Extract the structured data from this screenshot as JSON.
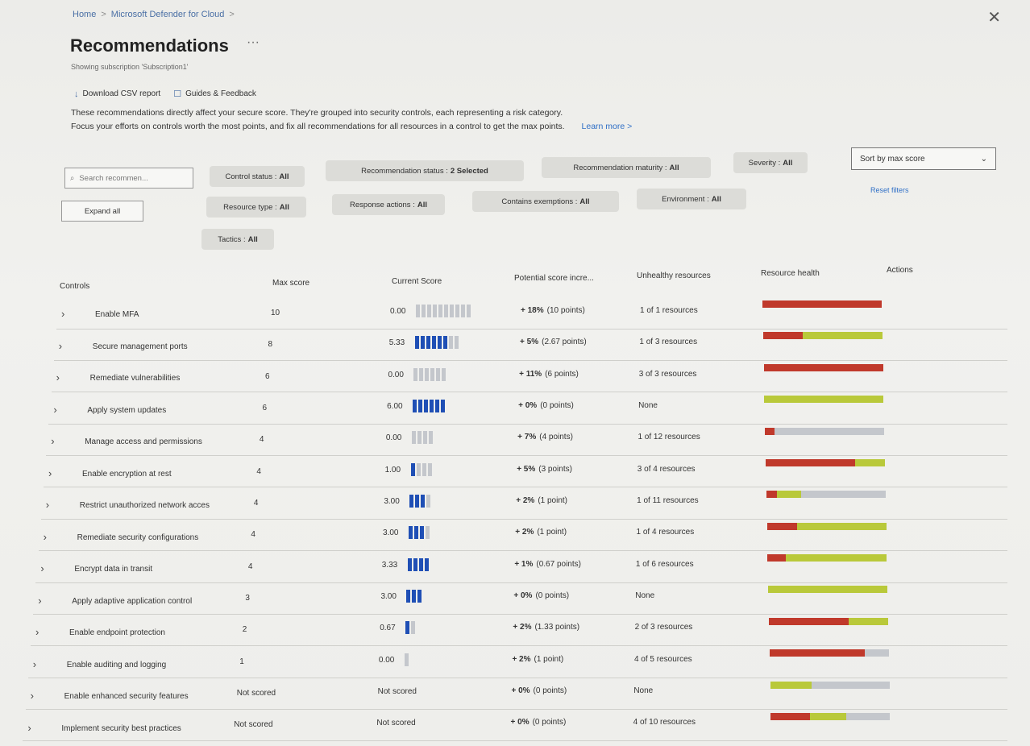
{
  "breadcrumb": [
    "Home",
    "Microsoft Defender for Cloud"
  ],
  "page": {
    "title": "Recommendations",
    "subtitle": "Showing subscription 'Subscription1'"
  },
  "toolbar": {
    "download": "Download CSV report",
    "feedback": "Guides & Feedback"
  },
  "description": {
    "line1": "These recommendations directly affect your secure score. They're grouped into security controls, each representing a risk category.",
    "line2": "Focus your efforts on controls worth the most points, and fix all recommendations for all resources in a control to get the max points.",
    "learn_more": "Learn more >"
  },
  "filters": {
    "search_placeholder": "Search recommen...",
    "expand_all": "Expand all",
    "sort": "Sort by max score",
    "reset": "Reset filters",
    "pills": [
      {
        "label": "Control status :",
        "value": "All"
      },
      {
        "label": "Recommendation status :",
        "value": "2 Selected"
      },
      {
        "label": "Recommendation maturity :",
        "value": "All"
      },
      {
        "label": "Severity :",
        "value": "All"
      },
      {
        "label": "Resource type :",
        "value": "All"
      },
      {
        "label": "Response actions :",
        "value": "All"
      },
      {
        "label": "Contains exemptions :",
        "value": "All"
      },
      {
        "label": "Environment :",
        "value": "All"
      },
      {
        "label": "Tactics :",
        "value": "All"
      }
    ]
  },
  "table": {
    "headers": {
      "controls": "Controls",
      "max": "Max score",
      "current": "Current Score",
      "potential": "Potential score incre...",
      "unhealthy": "Unhealthy resources",
      "health": "Resource health",
      "actions": "Actions"
    },
    "rows": [
      {
        "name": "Enable MFA",
        "max": "10",
        "current": "0.00",
        "on": 0,
        "off": 10,
        "pct": "+ 18%",
        "pts": "(10 points)",
        "unhealthy": "1 of 1 resources",
        "red": 1.0,
        "yellow": 0.0
      },
      {
        "name": "Secure management ports",
        "max": "8",
        "current": "5.33",
        "on": 6,
        "off": 2,
        "pct": "+ 5%",
        "pts": "(2.67 points)",
        "unhealthy": "1 of 3 resources",
        "red": 0.33,
        "yellow": 0.67
      },
      {
        "name": "Remediate vulnerabilities",
        "max": "6",
        "current": "0.00",
        "on": 0,
        "off": 6,
        "pct": "+ 11%",
        "pts": "(6 points)",
        "unhealthy": "3 of 3 resources",
        "red": 1.0,
        "yellow": 0.0
      },
      {
        "name": "Apply system updates",
        "max": "6",
        "current": "6.00",
        "on": 6,
        "off": 0,
        "pct": "+ 0%",
        "pts": "(0 points)",
        "unhealthy": "None",
        "red": 0.0,
        "yellow": 1.0
      },
      {
        "name": "Manage access and permissions",
        "max": "4",
        "current": "0.00",
        "on": 0,
        "off": 4,
        "pct": "+ 7%",
        "pts": "(4 points)",
        "unhealthy": "1 of 12 resources",
        "red": 0.08,
        "yellow": 0.0
      },
      {
        "name": "Enable encryption at rest",
        "max": "4",
        "current": "1.00",
        "on": 1,
        "off": 3,
        "pct": "+ 5%",
        "pts": "(3 points)",
        "unhealthy": "3 of 4 resources",
        "red": 0.75,
        "yellow": 0.25
      },
      {
        "name": "Restrict unauthorized network acces",
        "max": "4",
        "current": "3.00",
        "on": 3,
        "off": 1,
        "pct": "+ 2%",
        "pts": "(1 point)",
        "unhealthy": "1 of 11 resources",
        "red": 0.09,
        "yellow": 0.2
      },
      {
        "name": "Remediate security configurations",
        "max": "4",
        "current": "3.00",
        "on": 3,
        "off": 1,
        "pct": "+ 2%",
        "pts": "(1 point)",
        "unhealthy": "1 of 4 resources",
        "red": 0.25,
        "yellow": 0.75
      },
      {
        "name": "Encrypt data in transit",
        "max": "4",
        "current": "3.33",
        "on": 4,
        "off": 0,
        "pct": "+ 1%",
        "pts": "(0.67 points)",
        "unhealthy": "1 of 6 resources",
        "red": 0.15,
        "yellow": 0.85
      },
      {
        "name": "Apply adaptive application control",
        "max": "3",
        "current": "3.00",
        "on": 3,
        "off": 0,
        "pct": "+ 0%",
        "pts": "(0 points)",
        "unhealthy": "None",
        "red": 0.0,
        "yellow": 1.0
      },
      {
        "name": "Enable endpoint protection",
        "max": "2",
        "current": "0.67",
        "on": 1,
        "off": 1,
        "pct": "+ 2%",
        "pts": "(1.33 points)",
        "unhealthy": "2 of 3 resources",
        "red": 0.67,
        "yellow": 0.33
      },
      {
        "name": "Enable auditing and logging",
        "max": "1",
        "current": "0.00",
        "on": 0,
        "off": 1,
        "pct": "+ 2%",
        "pts": "(1 point)",
        "unhealthy": "4 of 5 resources",
        "red": 0.8,
        "yellow": 0.0
      },
      {
        "name": "Enable enhanced security features",
        "max": "Not scored",
        "current": "Not scored",
        "on": 0,
        "off": 0,
        "pct": "+ 0%",
        "pts": "(0 points)",
        "unhealthy": "None",
        "red": 0.0,
        "yellow": 0.35
      },
      {
        "name": "Implement security best practices",
        "max": "Not scored",
        "current": "Not scored",
        "on": 0,
        "off": 0,
        "pct": "+ 0%",
        "pts": "(0 points)",
        "unhealthy": "4 of 10 resources",
        "red": 0.33,
        "yellow": 0.3
      }
    ]
  },
  "colors": {
    "red": "#c0392b",
    "yellow": "#b9c93a",
    "gray": "#c4c7cc",
    "blue": "#1f4fb5"
  }
}
